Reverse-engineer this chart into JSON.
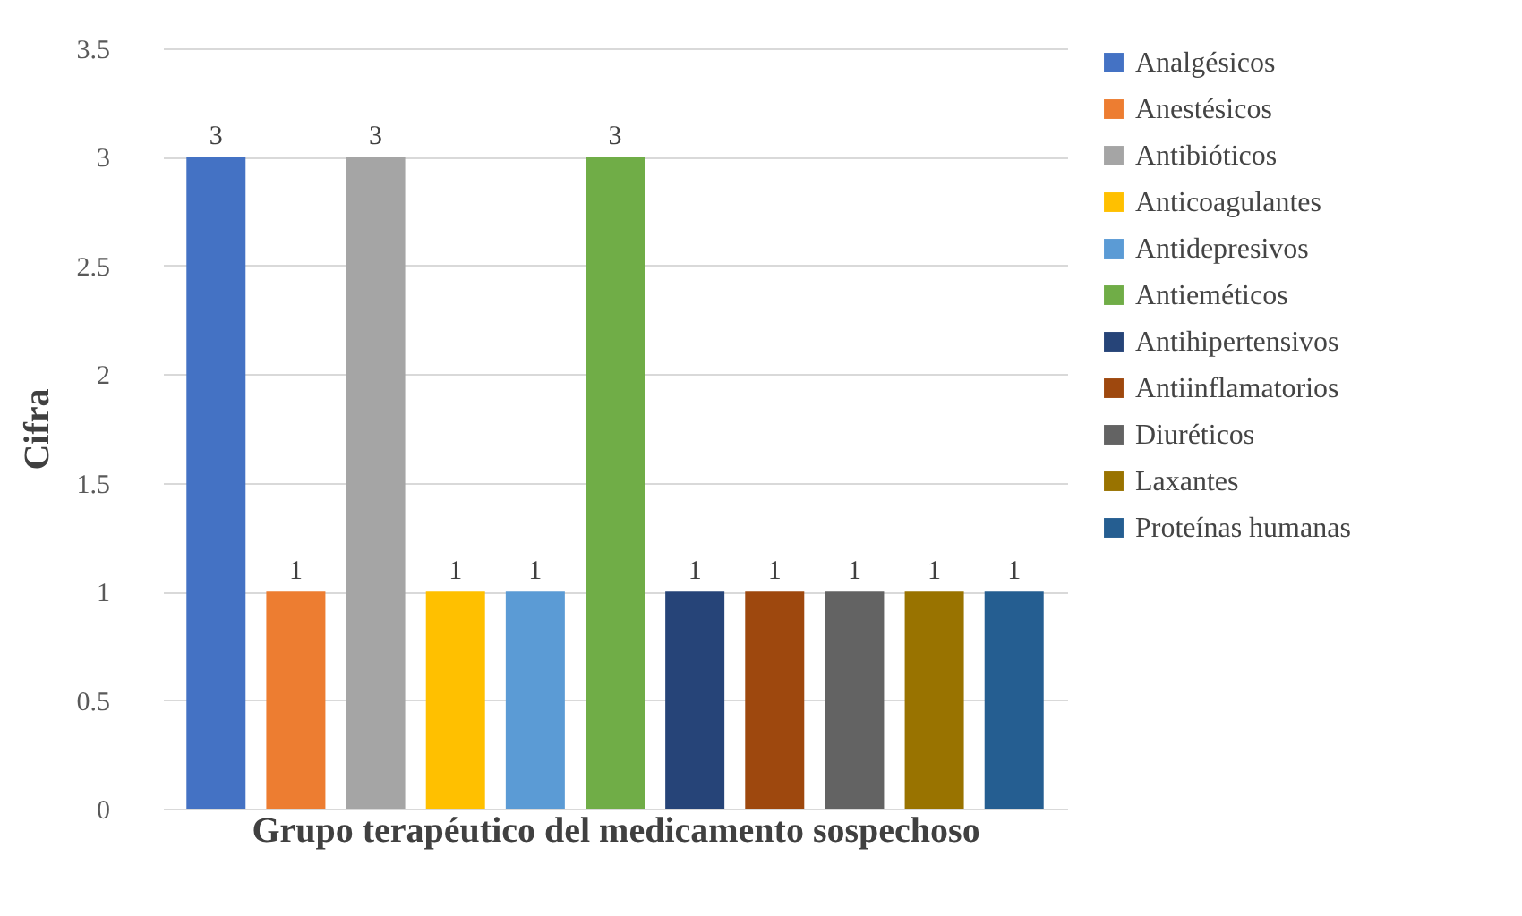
{
  "chart_data": {
    "type": "bar",
    "xlabel": "Grupo terapéutico del medicamento sospechoso",
    "ylabel": "Cifra",
    "categories": [
      null
    ],
    "series": [
      {
        "name": "Analgésicos",
        "color": "#4472c4",
        "values": [
          3
        ]
      },
      {
        "name": "Anestésicos",
        "color": "#ed7d31",
        "values": [
          1
        ]
      },
      {
        "name": "Antibióticos",
        "color": "#a5a5a5",
        "values": [
          3
        ]
      },
      {
        "name": "Anticoagulantes",
        "color": "#ffc000",
        "values": [
          1
        ]
      },
      {
        "name": "Antidepresivos",
        "color": "#5b9bd5",
        "values": [
          1
        ]
      },
      {
        "name": "Antieméticos",
        "color": "#70ad47",
        "values": [
          3
        ]
      },
      {
        "name": "Antihipertensivos",
        "color": "#264478",
        "values": [
          1
        ]
      },
      {
        "name": "Antiinflamatorios",
        "color": "#9e480e",
        "values": [
          1
        ]
      },
      {
        "name": "Diuréticos",
        "color": "#636363",
        "values": [
          1
        ]
      },
      {
        "name": "Laxantes",
        "color": "#997300",
        "values": [
          1
        ]
      },
      {
        "name": "Proteínas humanas",
        "color": "#255e91",
        "values": [
          1
        ]
      }
    ],
    "ylim": [
      0,
      3.5
    ],
    "yticks": [
      0,
      0.5,
      1,
      1.5,
      2,
      2.5,
      3,
      3.5
    ],
    "grid": "y",
    "legend": "right",
    "data_labels": true
  }
}
